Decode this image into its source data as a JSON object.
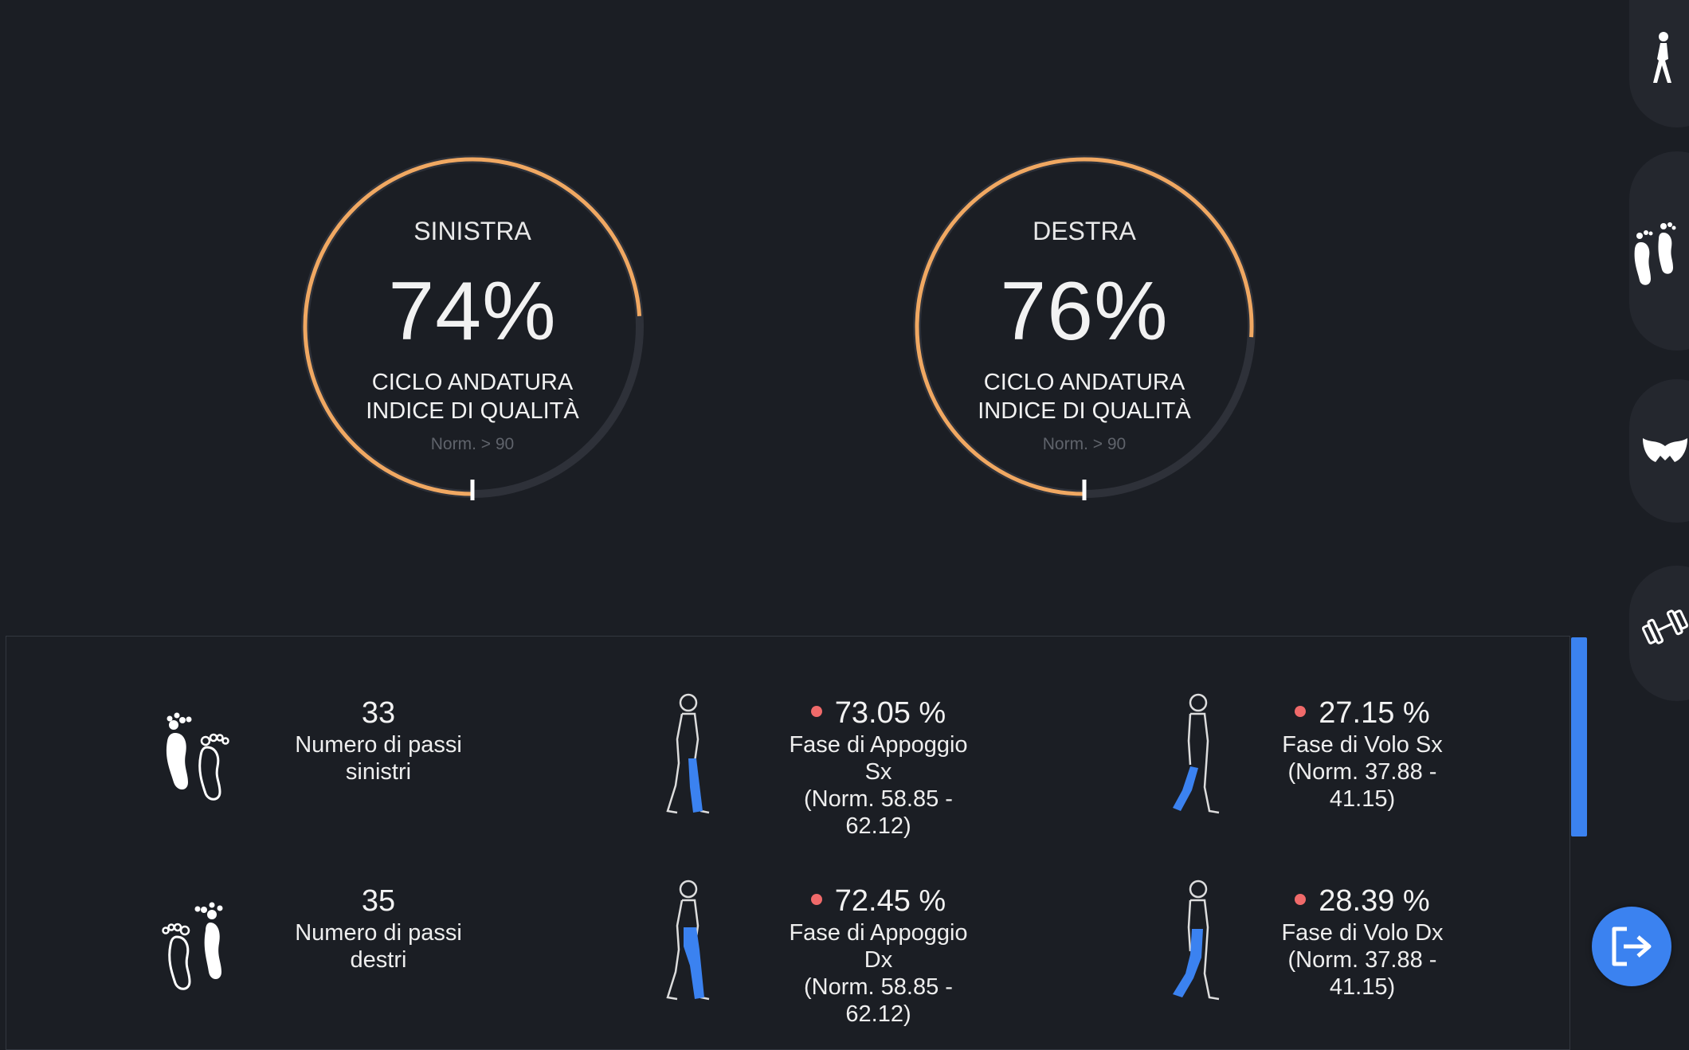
{
  "gauges": [
    {
      "side": "SINISTRA",
      "value": "74%",
      "caption_line1": "CICLO ANDATURA",
      "caption_line2": "INDICE DI QUALITÀ",
      "norm": "Norm. > 90",
      "quality_percent": 74
    },
    {
      "side": "DESTRA",
      "value": "76%",
      "caption_line1": "CICLO ANDATURA",
      "caption_line2": "INDICE DI QUALITÀ",
      "norm": "Norm. > 90",
      "quality_percent": 76
    }
  ],
  "stats": {
    "row1": {
      "steps": {
        "value": "33",
        "line1": "Numero di passi",
        "line2": "sinistri"
      },
      "stance": {
        "value": "73.05 %",
        "line1": "Fase di Appoggio",
        "line2": "Sx",
        "line3": "(Norm. 58.85 -",
        "line4": "62.12)"
      },
      "swing": {
        "value": "27.15 %",
        "line1": "Fase di Volo Sx",
        "line2": "(Norm. 37.88 -",
        "line3": "41.15)"
      }
    },
    "row2": {
      "steps": {
        "value": "35",
        "line1": "Numero di passi",
        "line2": "destri"
      },
      "stance": {
        "value": "72.45 %",
        "line1": "Fase di Appoggio",
        "line2": "Dx",
        "line3": "(Norm. 58.85 -",
        "line4": "62.12)"
      },
      "swing": {
        "value": "28.39 %",
        "line1": "Fase di Volo Dx",
        "line2": "(Norm. 37.88 -",
        "line3": "41.15)"
      }
    }
  },
  "sidebar": [
    "walking-person-icon",
    "footprints-icon",
    "pelvis-icon",
    "dumbbell-icon"
  ],
  "colors": {
    "background": "#1b1e24",
    "arc": "#f0a862",
    "track": "#2e3139",
    "accent": "#3b82f0",
    "dot": "#f06a6a"
  }
}
